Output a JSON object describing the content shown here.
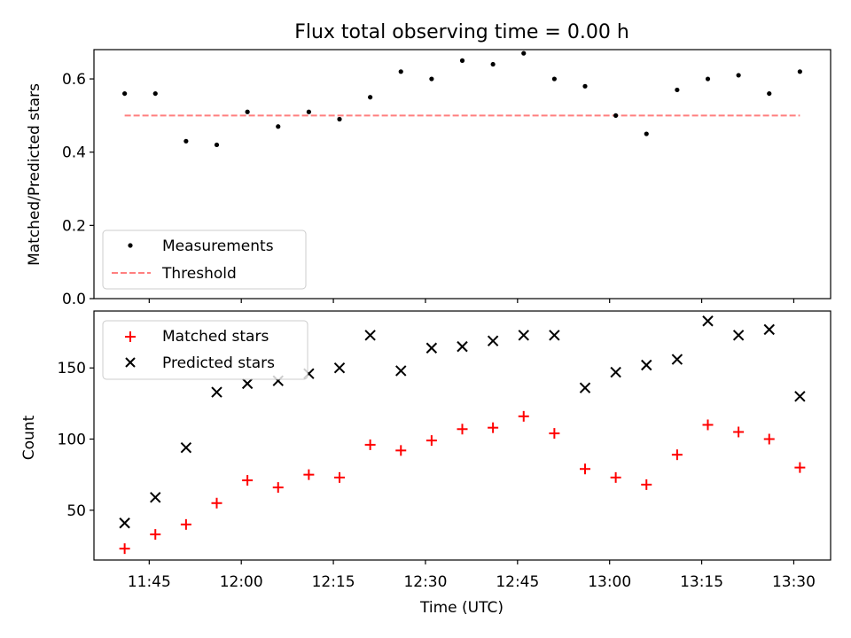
{
  "chart_data": [
    {
      "type": "scatter",
      "title": "Flux total observing time = 0.00 h",
      "ylabel": "Matched/Predicted stars",
      "ylim": [
        0,
        0.68
      ],
      "yticks": [
        "0.0",
        "0.2",
        "0.4",
        "0.6"
      ],
      "ytick_values": [
        0,
        0.2,
        0.4,
        0.6
      ],
      "legend_position": "lower-left",
      "series": [
        {
          "name": "Measurements",
          "marker": "dot",
          "color": "#000000",
          "x": [
            "11:41",
            "11:46",
            "11:51",
            "11:56",
            "12:01",
            "12:06",
            "12:11",
            "12:16",
            "12:21",
            "12:26",
            "12:31",
            "12:36",
            "12:41",
            "12:46",
            "12:51",
            "12:56",
            "13:01",
            "13:06",
            "13:11",
            "13:16",
            "13:21",
            "13:26",
            "13:31"
          ],
          "values": [
            0.56,
            0.56,
            0.43,
            0.42,
            0.51,
            0.47,
            0.51,
            0.49,
            0.55,
            0.62,
            0.6,
            0.65,
            0.64,
            0.67,
            0.6,
            0.58,
            0.5,
            0.45,
            0.57,
            0.6,
            0.61,
            0.56,
            0.62
          ]
        },
        {
          "name": "Threshold",
          "marker": "dashed-line",
          "color": "#ff7f7f",
          "x": [
            "11:41",
            "13:31"
          ],
          "values": [
            0.5,
            0.5
          ]
        }
      ]
    },
    {
      "type": "scatter",
      "xlabel": "Time (UTC)",
      "ylabel": "Count",
      "ylim": [
        15,
        190
      ],
      "yticks": [
        "50",
        "100",
        "150"
      ],
      "ytick_values": [
        50,
        100,
        150
      ],
      "xticks": [
        "11:45",
        "12:00",
        "12:15",
        "12:30",
        "12:45",
        "13:00",
        "13:15",
        "13:30"
      ],
      "xlim": [
        "11:36",
        "13:36"
      ],
      "legend_position": "upper-left",
      "series": [
        {
          "name": "Matched stars",
          "marker": "plus",
          "color": "#ff0000",
          "x": [
            "11:41",
            "11:46",
            "11:51",
            "11:56",
            "12:01",
            "12:06",
            "12:11",
            "12:16",
            "12:21",
            "12:26",
            "12:31",
            "12:36",
            "12:41",
            "12:46",
            "12:51",
            "12:56",
            "13:01",
            "13:06",
            "13:11",
            "13:16",
            "13:21",
            "13:26",
            "13:31"
          ],
          "values": [
            23,
            33,
            40,
            55,
            71,
            66,
            75,
            73,
            96,
            92,
            99,
            107,
            108,
            116,
            104,
            79,
            73,
            68,
            89,
            110,
            105,
            100,
            80
          ]
        },
        {
          "name": "Predicted stars",
          "marker": "cross",
          "color": "#000000",
          "x": [
            "11:41",
            "11:46",
            "11:51",
            "11:56",
            "12:01",
            "12:06",
            "12:11",
            "12:16",
            "12:21",
            "12:26",
            "12:31",
            "12:36",
            "12:41",
            "12:46",
            "12:51",
            "12:56",
            "13:01",
            "13:06",
            "13:11",
            "13:16",
            "13:21",
            "13:26",
            "13:31"
          ],
          "values": [
            41,
            59,
            94,
            133,
            139,
            141,
            146,
            150,
            173,
            148,
            164,
            165,
            169,
            173,
            173,
            136,
            147,
            152,
            156,
            183,
            173,
            177,
            130
          ]
        }
      ]
    }
  ]
}
